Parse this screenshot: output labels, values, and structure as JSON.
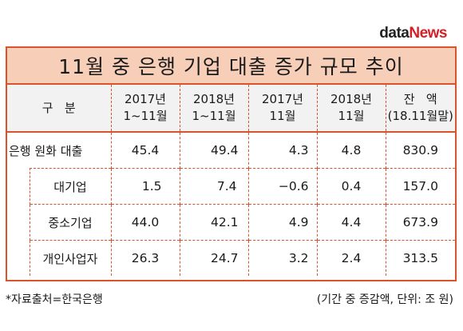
{
  "logo": {
    "part1": "data",
    "part2": "News"
  },
  "title": "11월 중 은행 기업 대출 증가 규모 추이",
  "header": {
    "col0": "구   분",
    "cols": [
      {
        "l1": "2017년",
        "l2": "1~11월"
      },
      {
        "l1": "2018년",
        "l2": "1~11월"
      },
      {
        "l1": "2017년",
        "l2": "11월"
      },
      {
        "l1": "2018년",
        "l2": "11월"
      },
      {
        "l1": "잔   액",
        "l2": "(18.11월말)"
      }
    ]
  },
  "rows": [
    {
      "label": "은행 원화 대출",
      "values": [
        "45.4",
        "49.4",
        "4.3",
        "4.8",
        "830.9"
      ]
    },
    {
      "label": "대기업",
      "values": [
        "1.5",
        "7.4",
        "−0.6",
        "0.4",
        "157.0"
      ]
    },
    {
      "label": "중소기업",
      "values": [
        "44.0",
        "42.1",
        "4.9",
        "4.4",
        "673.9"
      ]
    },
    {
      "label": "개인사업자",
      "values": [
        "26.3",
        "24.7",
        "3.2",
        "2.4",
        "313.5"
      ]
    }
  ],
  "footer": {
    "source": "*자료출처=한국은행",
    "note": "(기간 중 증감액, 단위: 조 원)"
  }
}
